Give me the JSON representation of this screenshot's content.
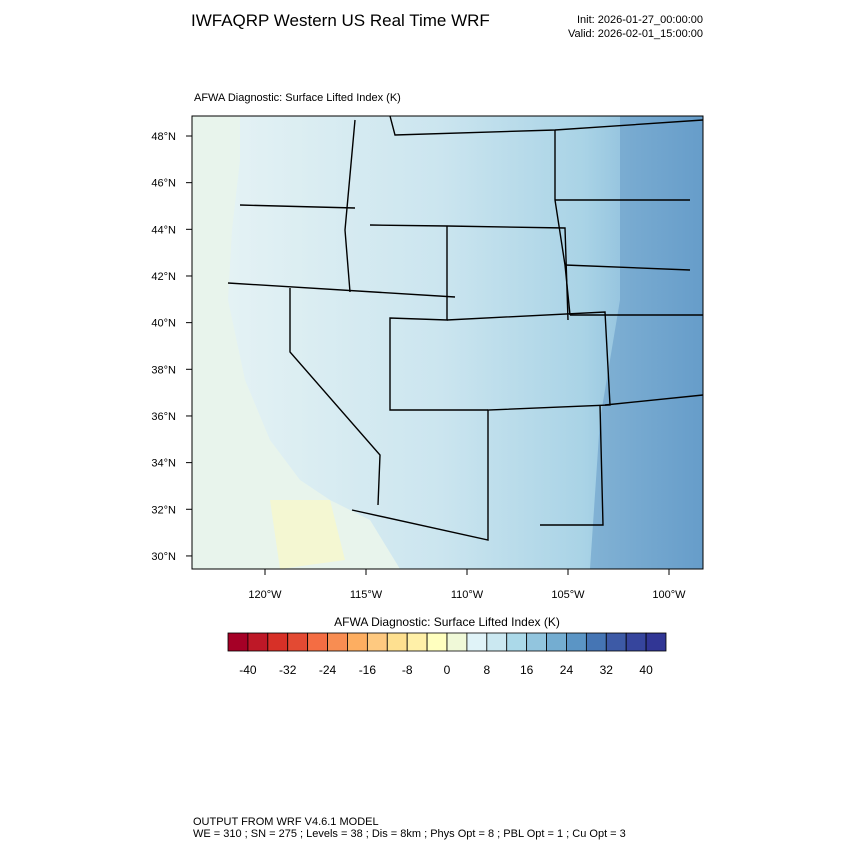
{
  "header": {
    "title": "IWFAQRP Western US Real Time WRF",
    "init": "Init: 2026-01-27_00:00:00",
    "valid": "Valid: 2026-02-01_15:00:00"
  },
  "map": {
    "title": "AFWA Diagnostic: Surface Lifted Index   (K)",
    "lat_ticks": [
      {
        "value": 48,
        "label": "48°N"
      },
      {
        "value": 46,
        "label": "46°N"
      },
      {
        "value": 44,
        "label": "44°N"
      },
      {
        "value": 42,
        "label": "42°N"
      },
      {
        "value": 40,
        "label": "40°N"
      },
      {
        "value": 38,
        "label": "38°N"
      },
      {
        "value": 36,
        "label": "36°N"
      },
      {
        "value": 34,
        "label": "34°N"
      },
      {
        "value": 32,
        "label": "32°N"
      },
      {
        "value": 30,
        "label": "30°N"
      }
    ],
    "lon_ticks": [
      {
        "value": -120,
        "label": "120°W"
      },
      {
        "value": -115,
        "label": "115°W"
      },
      {
        "value": -110,
        "label": "110°W"
      },
      {
        "value": -105,
        "label": "105°W"
      },
      {
        "value": -100,
        "label": "100°W"
      }
    ]
  },
  "colorbar": {
    "title": "AFWA Diagnostic: Surface Lifted Index  (K)",
    "labels": [
      -40,
      -32,
      -24,
      -16,
      -8,
      0,
      8,
      16,
      24,
      32,
      40
    ],
    "colors": [
      "#a50026",
      "#be1827",
      "#d73027",
      "#e34a33",
      "#f46d43",
      "#f88d52",
      "#fdae61",
      "#fec980",
      "#fee090",
      "#fff0a8",
      "#ffffbf",
      "#f0f9d8",
      "#e0f3f8",
      "#cbe8f1",
      "#abd9e9",
      "#92c5de",
      "#74add1",
      "#5b95c5",
      "#4575b4",
      "#3d5aa6",
      "#36459d",
      "#313695"
    ]
  },
  "footer": {
    "line1": "OUTPUT FROM WRF V4.6.1 MODEL",
    "line2": "WE = 310 ; SN = 275 ; Levels = 38 ; Dis = 8km ; Phys Opt = 8 ; PBL Opt = 1 ; Cu Opt = 3"
  }
}
